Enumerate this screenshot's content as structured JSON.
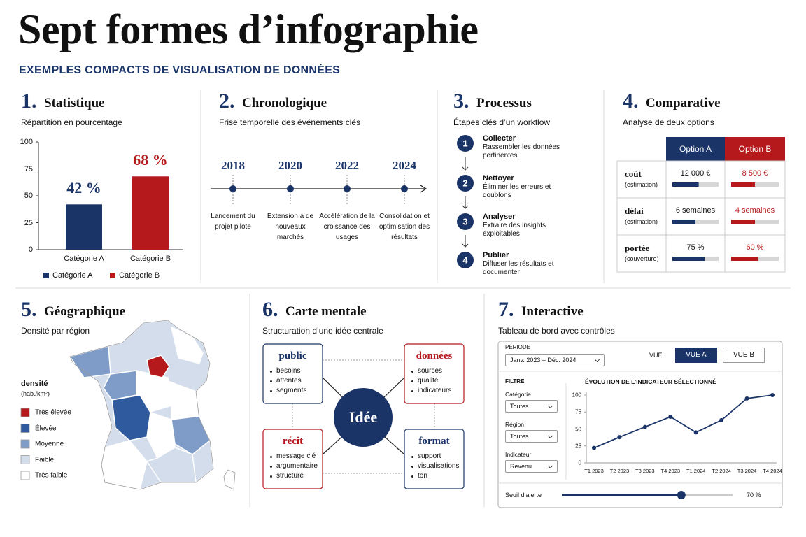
{
  "header": {
    "title": "Sept formes d’infographie",
    "subtitle": "EXEMPLES COMPACTS DE VISUALISATION DE DONNÉES"
  },
  "panels": [
    {
      "number": "1.",
      "title": "Statistique",
      "subtitle": "Répartition en pourcentage"
    },
    {
      "number": "2.",
      "title": "Chronologique",
      "subtitle": "Frise temporelle des événements clés"
    },
    {
      "number": "3.",
      "title": "Processus",
      "subtitle": "Étapes clés d’un workflow"
    },
    {
      "number": "4.",
      "title": "Comparative",
      "subtitle": "Analyse de deux options"
    },
    {
      "number": "5.",
      "title": "Géographique",
      "subtitle": "Densité par région"
    },
    {
      "number": "6.",
      "title": "Carte mentale",
      "subtitle": "Structuration d’une idée centrale"
    },
    {
      "number": "7.",
      "title": "Interactive",
      "subtitle": "Tableau de bord avec contrôles"
    }
  ],
  "chart_data": [
    {
      "type": "bar",
      "categories": [
        "Catégorie A",
        "Catégorie B"
      ],
      "values": [
        42,
        68
      ],
      "value_labels": [
        "42 %",
        "68 %"
      ],
      "colors": [
        "#1b3468",
        "#b5191c"
      ],
      "ylim": [
        0,
        100
      ],
      "yticks": [
        0,
        25,
        50,
        75,
        100
      ],
      "legend": true
    },
    {
      "type": "line",
      "title": "ÉVOLUTION DE L’INDICATEUR SÉLECTIONNÉ",
      "categories": [
        "T1 2023",
        "T2 2023",
        "T3 2023",
        "T4 2023",
        "T1 2024",
        "T2 2024",
        "T3 2024",
        "T4 2024"
      ],
      "values": [
        22,
        38,
        53,
        68,
        45,
        63,
        95,
        100
      ],
      "color": "#1b3468",
      "ylim": [
        0,
        100
      ],
      "yticks": [
        0,
        25,
        50,
        75,
        100
      ],
      "grid": false
    }
  ],
  "timeline": [
    {
      "year": "2018",
      "label": "Lancement du projet pilote"
    },
    {
      "year": "2020",
      "label": "Extension à de nouveaux marchés"
    },
    {
      "year": "2022",
      "label": "Accélération de la croissance des usages"
    },
    {
      "year": "2024",
      "label": "Consolidation et optimisation des résultats"
    }
  ],
  "process": [
    {
      "step": "1",
      "title": "Collecter",
      "text": "Rassembler les données pertinentes"
    },
    {
      "step": "2",
      "title": "Nettoyer",
      "text": "Éliminer les erreurs et doublons"
    },
    {
      "step": "3",
      "title": "Analyser",
      "text": "Extraire des insights exploitables"
    },
    {
      "step": "4",
      "title": "Publier",
      "text": "Diffuser les résultats et documenter"
    }
  ],
  "comparison": {
    "columns": [
      "Option A",
      "Option B"
    ],
    "rows": [
      {
        "label": "coût",
        "note": "(estimation)",
        "values": [
          "12 000 €",
          "8 500 €"
        ],
        "bars": [
          57,
          50
        ]
      },
      {
        "label": "délai",
        "note": "(estimation)",
        "values": [
          "6 semaines",
          "4 semaines"
        ],
        "bars": [
          50,
          50
        ]
      },
      {
        "label": "portée",
        "note": "(couverture)",
        "values": [
          "75 %",
          "60 %"
        ],
        "bars": [
          70,
          57
        ]
      }
    ]
  },
  "geo": {
    "legend_title": "densité",
    "legend_unit": "(hab./km²)",
    "classes": [
      {
        "label": "Très élevée",
        "color": "#b5191c"
      },
      {
        "label": "Élevée",
        "color": "#2f5a9e"
      },
      {
        "label": "Moyenne",
        "color": "#7f9cc9"
      },
      {
        "label": "Faible",
        "color": "#d3ddec"
      },
      {
        "label": "Très faible",
        "color": "#ffffff"
      }
    ]
  },
  "mindmap": {
    "center": "Idée",
    "nodes": [
      {
        "title": "public",
        "items": [
          "besoins",
          "attentes",
          "segments"
        ],
        "color": "#1b3468"
      },
      {
        "title": "données",
        "items": [
          "sources",
          "qualité",
          "indicateurs"
        ],
        "color": "#b5191c"
      },
      {
        "title": "récit",
        "items": [
          "message clé",
          "argumentaire",
          "structure"
        ],
        "color": "#b5191c"
      },
      {
        "title": "format",
        "items": [
          "support",
          "visualisations",
          "ton"
        ],
        "color": "#1b3468"
      }
    ]
  },
  "dashboard": {
    "period_label": "PÉRIODE",
    "period": "Janv. 2023 – Déc. 2024",
    "view_label": "VUE",
    "views": [
      "VUE A",
      "VUE B"
    ],
    "filter_label": "FILTRE",
    "filters": [
      {
        "label": "Catégorie",
        "value": "Toutes"
      },
      {
        "label": "Région",
        "value": "Toutes"
      },
      {
        "label": "Indicateur",
        "value": "Revenu"
      }
    ],
    "slider": {
      "label": "Seuil d’alerte",
      "value": 70,
      "value_label": "70 %",
      "range": [
        0,
        100
      ]
    }
  }
}
